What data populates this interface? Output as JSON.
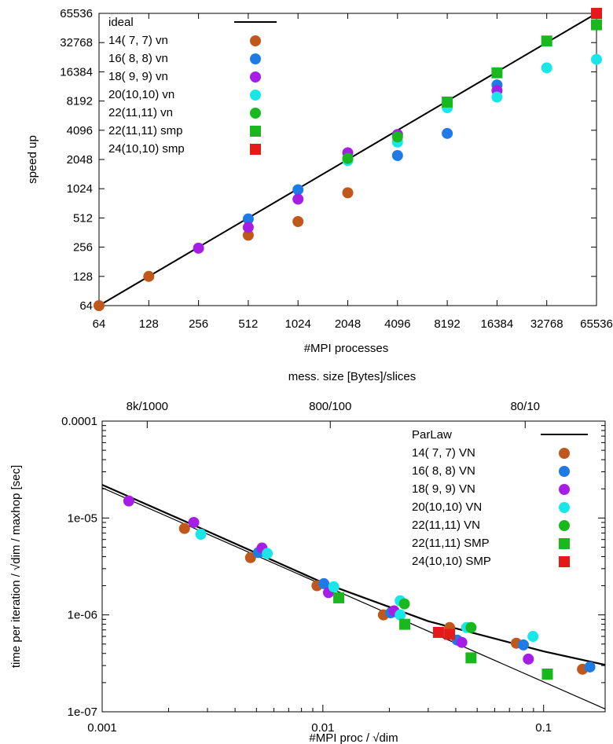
{
  "chart_data": [
    {
      "type": "scatter",
      "xscale": "log2",
      "yscale": "log2",
      "xlabel": "#MPI processes",
      "ylabel": "speed up",
      "xlim": [
        64,
        65536
      ],
      "ylim": [
        64,
        65536
      ],
      "xticks": [
        "64",
        "128",
        "256",
        "512",
        "1024",
        "2048",
        "4096",
        "8192",
        "16384",
        "32768",
        "65536"
      ],
      "yticks": [
        "64",
        "128",
        "256",
        "512",
        "1024",
        "2048",
        "4096",
        "8192",
        "16384",
        "32768",
        "65536"
      ],
      "legend_position": "top-left",
      "line": {
        "name": "ideal",
        "points": [
          [
            64,
            64
          ],
          [
            65536,
            65536
          ]
        ]
      },
      "series": [
        {
          "name": "14( 7,  7) vn",
          "marker": "circle",
          "color": "#c0571b",
          "points": [
            [
              64,
              64
            ],
            [
              128,
              128
            ],
            [
              512,
              340
            ],
            [
              1024,
              470
            ],
            [
              2048,
              930
            ]
          ]
        },
        {
          "name": "16( 8,  8) vn",
          "marker": "circle",
          "color": "#1e7be6",
          "points": [
            [
              512,
              500
            ],
            [
              1024,
              1000
            ],
            [
              4096,
              2250
            ],
            [
              8192,
              3800
            ],
            [
              16384,
              12000
            ],
            [
              65536,
              50000
            ]
          ]
        },
        {
          "name": "18( 9,  9) vn",
          "marker": "circle",
          "color": "#a61ee6",
          "points": [
            [
              256,
              250
            ],
            [
              512,
              410
            ],
            [
              1024,
              800
            ],
            [
              2048,
              2400
            ],
            [
              4096,
              3700
            ],
            [
              16384,
              10500
            ]
          ]
        },
        {
          "name": "20(10,10) vn",
          "marker": "circle",
          "color": "#19e6e6",
          "points": [
            [
              2048,
              2000
            ],
            [
              4096,
              3100
            ],
            [
              8192,
              7000
            ],
            [
              16384,
              9000
            ],
            [
              32768,
              18000
            ],
            [
              65536,
              22000
            ]
          ]
        },
        {
          "name": "22(11,11) vn",
          "marker": "circle",
          "color": "#19b81e",
          "points": [
            [
              2048,
              2100
            ],
            [
              4096,
              3500
            ]
          ]
        },
        {
          "name": "22(11,11) smp",
          "marker": "square",
          "color": "#19b81e",
          "points": [
            [
              8192,
              8000
            ],
            [
              16384,
              16000
            ],
            [
              32768,
              34000
            ],
            [
              65536,
              50000
            ]
          ]
        },
        {
          "name": "24(10,10) smp",
          "marker": "square",
          "color": "#e61919",
          "points": [
            [
              65536,
              65536
            ]
          ]
        }
      ]
    },
    {
      "type": "scatter",
      "xscale": "log10",
      "yscale": "log10",
      "xlabel": "#MPI proc / √dim",
      "ylabel": "time per iteration / √dim / maxhop [sec]",
      "x2label": "mess. size [Bytes]/slices",
      "xlim": [
        0.001,
        0.19
      ],
      "ylim": [
        1e-07,
        0.0001
      ],
      "xticks": [
        "0.001",
        "0.01",
        "0.1"
      ],
      "yticks": [
        "1e-07",
        "1e-06",
        "1e-05",
        "0.0001"
      ],
      "x2ticks": [
        {
          "label": "8k/1000",
          "x": 0.0016
        },
        {
          "label": "800/100",
          "x": 0.0108
        },
        {
          "label": "80/10",
          "x": 0.0825
        }
      ],
      "legend_position": "top-right",
      "lines": [
        {
          "name": "ParLaw",
          "points": [
            [
              0.001,
              2.2e-05
            ],
            [
              0.003,
              7.3e-06
            ],
            [
              0.01,
              2.15e-06
            ],
            [
              0.03,
              8.6e-07
            ],
            [
              0.1,
              4.2e-07
            ],
            [
              0.19,
              3.05e-07
            ]
          ]
        },
        {
          "name": "",
          "points": [
            [
              0.001,
              2.05e-05
            ],
            [
              0.19,
              1.07e-07
            ]
          ]
        }
      ],
      "series": [
        {
          "name": "14( 7,  7) VN",
          "marker": "circle",
          "color": "#c0571b",
          "points": [
            [
              0.00236,
              7.8e-06
            ],
            [
              0.0047,
              3.9e-06
            ],
            [
              0.0094,
              2e-06
            ],
            [
              0.0188,
              1e-06
            ],
            [
              0.0375,
              7.4e-07
            ],
            [
              0.0752,
              5.1e-07
            ],
            [
              0.15,
              2.75e-07
            ]
          ]
        },
        {
          "name": "16( 8,  8) VN",
          "marker": "circle",
          "color": "#1e7be6",
          "points": [
            [
              0.0051,
              4.4e-06
            ],
            [
              0.0101,
              2.1e-06
            ],
            [
              0.0203,
              1.05e-06
            ],
            [
              0.0406,
              5.5e-07
            ],
            [
              0.081,
              4.9e-07
            ],
            [
              0.162,
              2.9e-07
            ]
          ]
        },
        {
          "name": "18( 9,  9) VN",
          "marker": "circle",
          "color": "#a61ee6",
          "points": [
            [
              0.00132,
              1.5e-05
            ],
            [
              0.0026,
              9e-06
            ],
            [
              0.0053,
              4.9e-06
            ],
            [
              0.0106,
              1.7e-06
            ],
            [
              0.021,
              1.1e-06
            ],
            [
              0.0426,
              5.2e-07
            ],
            [
              0.0853,
              3.5e-07
            ]
          ]
        },
        {
          "name": "20(10,10) VN",
          "marker": "circle",
          "color": "#19e6e6",
          "points": [
            [
              0.0028,
              6.8e-06
            ],
            [
              0.0056,
              4.3e-06
            ],
            [
              0.0112,
              1.95e-06
            ],
            [
              0.0224,
              1.4e-06
            ],
            [
              0.0224,
              1e-06
            ],
            [
              0.0448,
              7.4e-07
            ],
            [
              0.0895,
              6e-07
            ]
          ]
        },
        {
          "name": "22(11,11) VN",
          "marker": "circle",
          "color": "#19b81e",
          "points": [
            [
              0.0234,
              1.3e-06
            ],
            [
              0.0469,
              7.4e-07
            ]
          ]
        },
        {
          "name": "22(11,11) SMP",
          "marker": "square",
          "color": "#19b81e",
          "points": [
            [
              0.0118,
              1.5e-06
            ],
            [
              0.0235,
              8e-07
            ],
            [
              0.0469,
              3.6e-07
            ],
            [
              0.104,
              2.45e-07
            ]
          ]
        },
        {
          "name": "24(10,10) SMP",
          "marker": "square",
          "color": "#e61919",
          "points": [
            [
              0.0334,
              6.6e-07
            ],
            [
              0.0375,
              6.3e-07
            ]
          ]
        }
      ]
    }
  ]
}
